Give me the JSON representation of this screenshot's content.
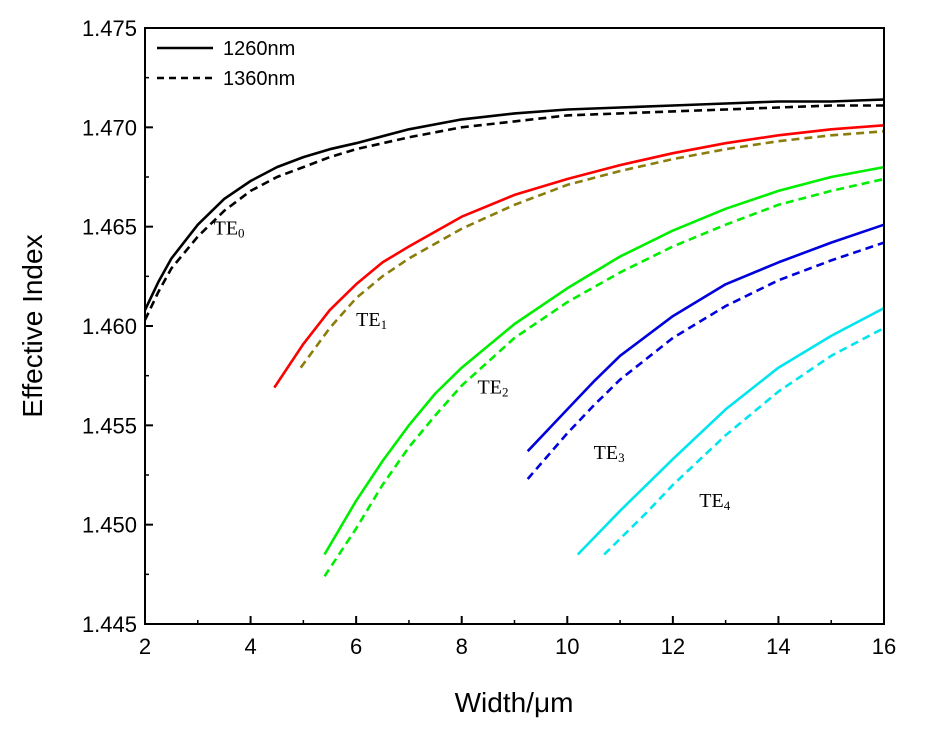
{
  "chart_data": {
    "type": "line",
    "title": "",
    "xlabel": "Width/μm",
    "ylabel": "Effective Index",
    "xlim": [
      2,
      16
    ],
    "ylim": [
      1.445,
      1.475
    ],
    "x_ticks": [
      "2",
      "4",
      "6",
      "8",
      "10",
      "12",
      "14",
      "16"
    ],
    "y_ticks": [
      "1.445",
      "1.450",
      "1.455",
      "1.460",
      "1.465",
      "1.470",
      "1.475"
    ],
    "grid": false,
    "legend_position": "top-left",
    "legend": [
      {
        "label": "1260nm",
        "style": "solid"
      },
      {
        "label": "1360nm",
        "style": "dashed"
      }
    ],
    "mode_labels": [
      {
        "base": "TE",
        "sub": "0",
        "x": 3.3,
        "y": 1.4646
      },
      {
        "base": "TE",
        "sub": "1",
        "x": 6.0,
        "y": 1.46
      },
      {
        "base": "TE",
        "sub": "2",
        "x": 8.3,
        "y": 1.4566
      },
      {
        "base": "TE",
        "sub": "3",
        "x": 10.5,
        "y": 1.4533
      },
      {
        "base": "TE",
        "sub": "4",
        "x": 12.5,
        "y": 1.4509
      }
    ],
    "series": [
      {
        "mode": "TE0",
        "wavelength": "1260nm",
        "style": "solid",
        "color": "#000000",
        "x": [
          2.0,
          2.25,
          2.5,
          3.0,
          3.5,
          4.0,
          4.5,
          5.0,
          5.5,
          6.0,
          7.0,
          8.0,
          9.0,
          10.0,
          11.0,
          12.0,
          13.0,
          14.0,
          15.0,
          16.0
        ],
        "y": [
          1.4608,
          1.4622,
          1.4634,
          1.4651,
          1.4664,
          1.4673,
          1.468,
          1.4685,
          1.4689,
          1.4692,
          1.4699,
          1.4704,
          1.4707,
          1.4709,
          1.471,
          1.4711,
          1.4712,
          1.4713,
          1.4713,
          1.4714
        ]
      },
      {
        "mode": "TE0",
        "wavelength": "1360nm",
        "style": "dashed",
        "color": "#000000",
        "x": [
          2.0,
          2.25,
          2.5,
          3.0,
          3.5,
          4.0,
          4.5,
          5.0,
          5.5,
          6.0,
          7.0,
          8.0,
          9.0,
          10.0,
          11.0,
          12.0,
          13.0,
          14.0,
          15.0,
          16.0
        ],
        "y": [
          1.4603,
          1.4617,
          1.4629,
          1.4645,
          1.4658,
          1.4668,
          1.4675,
          1.468,
          1.4685,
          1.4689,
          1.4695,
          1.47,
          1.4703,
          1.4706,
          1.4707,
          1.4708,
          1.4709,
          1.471,
          1.4711,
          1.4711
        ]
      },
      {
        "mode": "TE1",
        "wavelength": "1260nm",
        "style": "solid",
        "color": "#ff0000",
        "x": [
          4.45,
          5.0,
          5.5,
          6.0,
          6.5,
          7.0,
          8.0,
          9.0,
          10.0,
          11.0,
          12.0,
          13.0,
          14.0,
          15.0,
          16.0
        ],
        "y": [
          1.4569,
          1.4591,
          1.4608,
          1.4621,
          1.4632,
          1.464,
          1.4655,
          1.4666,
          1.4674,
          1.4681,
          1.4687,
          1.4692,
          1.4696,
          1.4699,
          1.4701
        ]
      },
      {
        "mode": "TE1",
        "wavelength": "1360nm",
        "style": "dashed",
        "color": "#8b7d0c",
        "x": [
          4.95,
          5.5,
          6.0,
          6.5,
          7.0,
          8.0,
          9.0,
          10.0,
          11.0,
          12.0,
          13.0,
          14.0,
          15.0,
          16.0
        ],
        "y": [
          1.4579,
          1.4599,
          1.4614,
          1.4625,
          1.4634,
          1.4649,
          1.4661,
          1.4671,
          1.4678,
          1.4684,
          1.4689,
          1.4693,
          1.4696,
          1.4698
        ]
      },
      {
        "mode": "TE2",
        "wavelength": "1260nm",
        "style": "solid",
        "color": "#00ee00",
        "x": [
          5.4,
          6.0,
          6.5,
          7.0,
          7.5,
          8.0,
          9.0,
          10.0,
          11.0,
          12.0,
          13.0,
          14.0,
          15.0,
          16.0
        ],
        "y": [
          1.4485,
          1.4512,
          1.4532,
          1.455,
          1.4566,
          1.4579,
          1.4601,
          1.4619,
          1.4635,
          1.4648,
          1.4659,
          1.4668,
          1.4675,
          1.468
        ]
      },
      {
        "mode": "TE2",
        "wavelength": "1360nm",
        "style": "dashed",
        "color": "#00ee00",
        "x": [
          5.4,
          6.0,
          6.5,
          7.0,
          7.5,
          8.0,
          9.0,
          10.0,
          11.0,
          12.0,
          13.0,
          14.0,
          15.0,
          16.0
        ],
        "y": [
          1.4474,
          1.4498,
          1.452,
          1.4539,
          1.4555,
          1.457,
          1.4594,
          1.4612,
          1.4627,
          1.464,
          1.4651,
          1.4661,
          1.4668,
          1.4674
        ]
      },
      {
        "mode": "TE3",
        "wavelength": "1260nm",
        "style": "solid",
        "color": "#0000dd",
        "x": [
          9.25,
          10.0,
          10.5,
          11.0,
          12.0,
          13.0,
          14.0,
          15.0,
          16.0
        ],
        "y": [
          1.4537,
          1.4558,
          1.4572,
          1.4585,
          1.4605,
          1.4621,
          1.4632,
          1.4642,
          1.4651
        ]
      },
      {
        "mode": "TE3",
        "wavelength": "1360nm",
        "style": "dashed",
        "color": "#0000dd",
        "x": [
          9.25,
          10.0,
          10.5,
          11.0,
          12.0,
          13.0,
          14.0,
          15.0,
          16.0
        ],
        "y": [
          1.4523,
          1.4546,
          1.456,
          1.4573,
          1.4594,
          1.461,
          1.4623,
          1.4633,
          1.4642
        ]
      },
      {
        "mode": "TE4",
        "wavelength": "1260nm",
        "style": "solid",
        "color": "#00e5ee",
        "x": [
          10.2,
          11.0,
          11.5,
          12.0,
          13.0,
          14.0,
          15.0,
          16.0
        ],
        "y": [
          1.4485,
          1.4507,
          1.452,
          1.4533,
          1.4558,
          1.4579,
          1.4595,
          1.4609
        ]
      },
      {
        "mode": "TE4",
        "wavelength": "1360nm",
        "style": "dashed",
        "color": "#00e5ee",
        "x": [
          10.7,
          11.5,
          12.0,
          13.0,
          14.0,
          15.0,
          16.0
        ],
        "y": [
          1.4485,
          1.4506,
          1.452,
          1.4545,
          1.4567,
          1.4585,
          1.4599
        ]
      }
    ]
  }
}
